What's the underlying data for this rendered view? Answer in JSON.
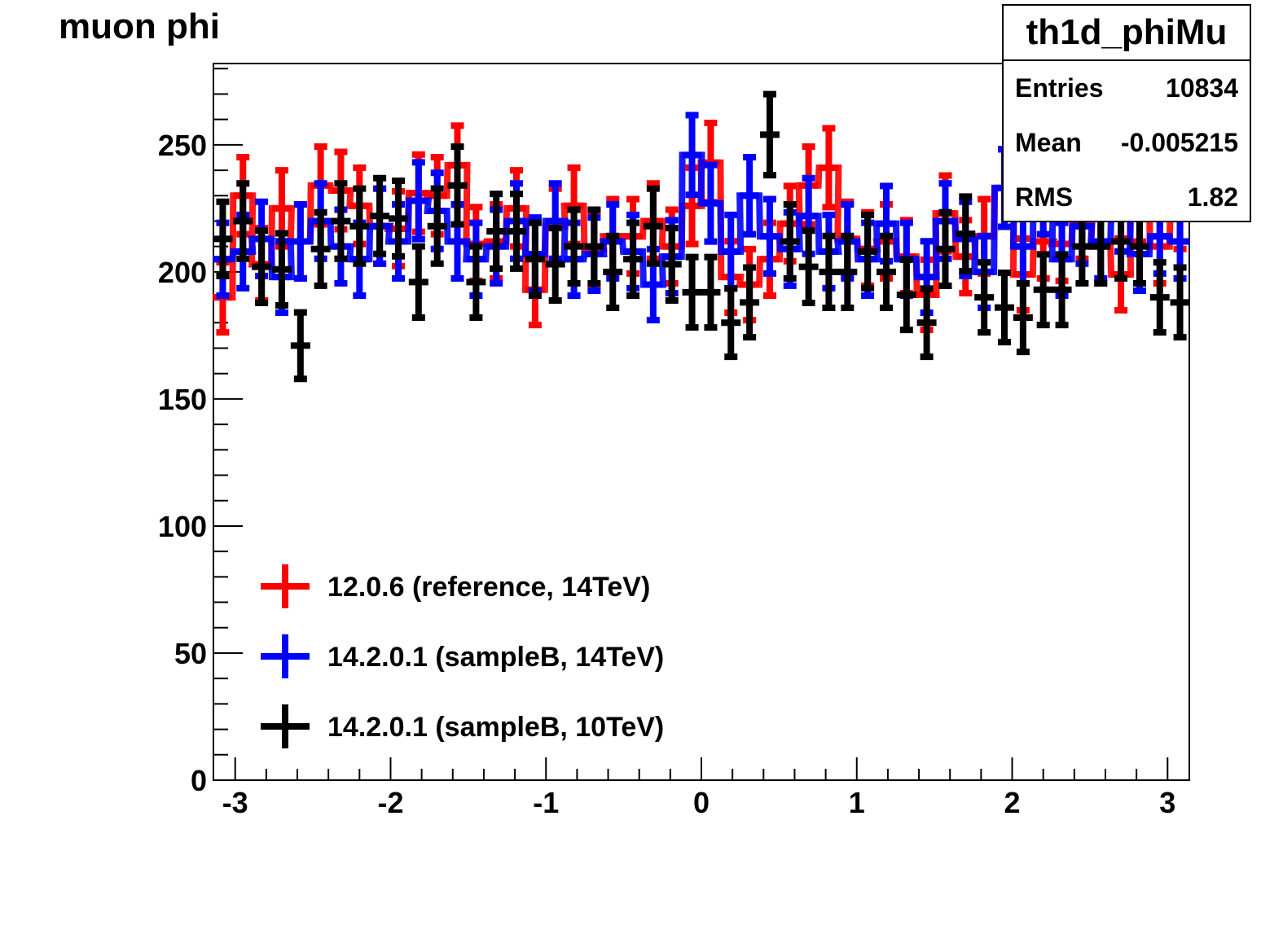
{
  "title": "muon phi",
  "stats": {
    "name": "th1d_phiMu",
    "entries_label": "Entries",
    "entries_value": "10834",
    "mean_label": "Mean",
    "mean_value": "-0.005215",
    "rms_label": "RMS",
    "rms_value": "1.82"
  },
  "chart_data": {
    "type": "line",
    "xlim": [
      -3.14,
      3.14
    ],
    "ylim": [
      0,
      282
    ],
    "x_ticks": [
      -3,
      -2,
      -1,
      0,
      1,
      2,
      3
    ],
    "y_ticks": [
      0,
      50,
      100,
      150,
      200,
      250
    ],
    "x_tick_labels": [
      "-3",
      "-2",
      "-1",
      "0",
      "1",
      "2",
      "3"
    ],
    "y_tick_labels": [
      "0",
      "50",
      "100",
      "150",
      "200",
      "250"
    ],
    "legend_position": "bottom-left",
    "bin_width": 0.1257,
    "series": [
      {
        "name": "12.0.6 (reference, 14TeV)",
        "color": "#ff0000",
        "x": [
          -3.08,
          -2.95,
          -2.83,
          -2.7,
          -2.58,
          -2.45,
          -2.32,
          -2.2,
          -2.07,
          -1.95,
          -1.82,
          -1.7,
          -1.57,
          -1.45,
          -1.32,
          -1.19,
          -1.07,
          -0.94,
          -0.82,
          -0.69,
          -0.57,
          -0.44,
          -0.31,
          -0.19,
          -0.06,
          0.06,
          0.19,
          0.31,
          0.44,
          0.57,
          0.69,
          0.82,
          0.94,
          1.07,
          1.19,
          1.32,
          1.45,
          1.57,
          1.7,
          1.82,
          1.95,
          2.07,
          2.2,
          2.32,
          2.45,
          2.57,
          2.7,
          2.82,
          2.95,
          3.08
        ],
        "y": [
          190,
          230,
          203,
          225,
          212,
          234,
          232,
          226,
          218,
          217,
          231,
          230,
          242,
          211,
          212,
          225,
          193,
          218,
          226,
          209,
          214,
          214,
          220,
          210,
          226,
          243,
          198,
          195,
          205,
          219,
          234,
          241,
          213,
          209,
          212,
          206,
          191,
          223,
          206,
          214,
          233,
          199,
          212,
          211,
          220,
          210,
          199,
          227,
          210,
          224
        ]
      },
      {
        "name": "14.2.0.1 (sampleB, 14TeV)",
        "color": "#0000ff",
        "x": [
          -3.08,
          -2.95,
          -2.83,
          -2.7,
          -2.58,
          -2.45,
          -2.32,
          -2.2,
          -2.07,
          -1.95,
          -1.82,
          -1.7,
          -1.57,
          -1.45,
          -1.32,
          -1.19,
          -1.07,
          -0.94,
          -0.82,
          -0.69,
          -0.57,
          -0.44,
          -0.31,
          -0.19,
          -0.06,
          0.06,
          0.19,
          0.31,
          0.44,
          0.57,
          0.69,
          0.82,
          0.94,
          1.07,
          1.19,
          1.32,
          1.45,
          1.57,
          1.7,
          1.82,
          1.95,
          2.07,
          2.2,
          2.32,
          2.45,
          2.57,
          2.7,
          2.82,
          2.95,
          3.08
        ],
        "y": [
          205,
          208,
          213,
          198,
          212,
          220,
          210,
          205,
          218,
          212,
          228,
          224,
          212,
          205,
          210,
          220,
          207,
          220,
          205,
          207,
          212,
          208,
          195,
          206,
          246,
          227,
          208,
          230,
          214,
          209,
          222,
          208,
          212,
          205,
          219,
          205,
          198,
          220,
          213,
          200,
          233,
          210,
          230,
          205,
          218,
          212,
          223,
          207,
          214,
          212
        ]
      },
      {
        "name": "14.2.0.1 (sampleB, 10TeV)",
        "color": "#000000",
        "x": [
          -3.08,
          -2.95,
          -2.83,
          -2.7,
          -2.58,
          -2.45,
          -2.32,
          -2.2,
          -2.07,
          -1.95,
          -1.82,
          -1.7,
          -1.57,
          -1.45,
          -1.32,
          -1.19,
          -1.07,
          -0.94,
          -0.82,
          -0.69,
          -0.57,
          -0.44,
          -0.31,
          -0.19,
          -0.06,
          0.06,
          0.19,
          0.31,
          0.44,
          0.57,
          0.69,
          0.82,
          0.94,
          1.07,
          1.19,
          1.32,
          1.45,
          1.57,
          1.7,
          1.82,
          1.95,
          2.07,
          2.2,
          2.32,
          2.45,
          2.57,
          2.7,
          2.82,
          2.95,
          3.08
        ],
        "y": [
          213,
          220,
          202,
          201,
          171,
          209,
          220,
          218,
          222,
          221,
          196,
          218,
          234,
          196,
          216,
          216,
          205,
          203,
          210,
          210,
          200,
          205,
          218,
          203,
          192,
          192,
          180,
          188,
          254,
          212,
          202,
          200,
          200,
          208,
          200,
          191,
          180,
          209,
          215,
          190,
          186,
          182,
          193,
          193,
          210,
          210,
          212,
          210,
          190,
          188
        ]
      }
    ]
  }
}
